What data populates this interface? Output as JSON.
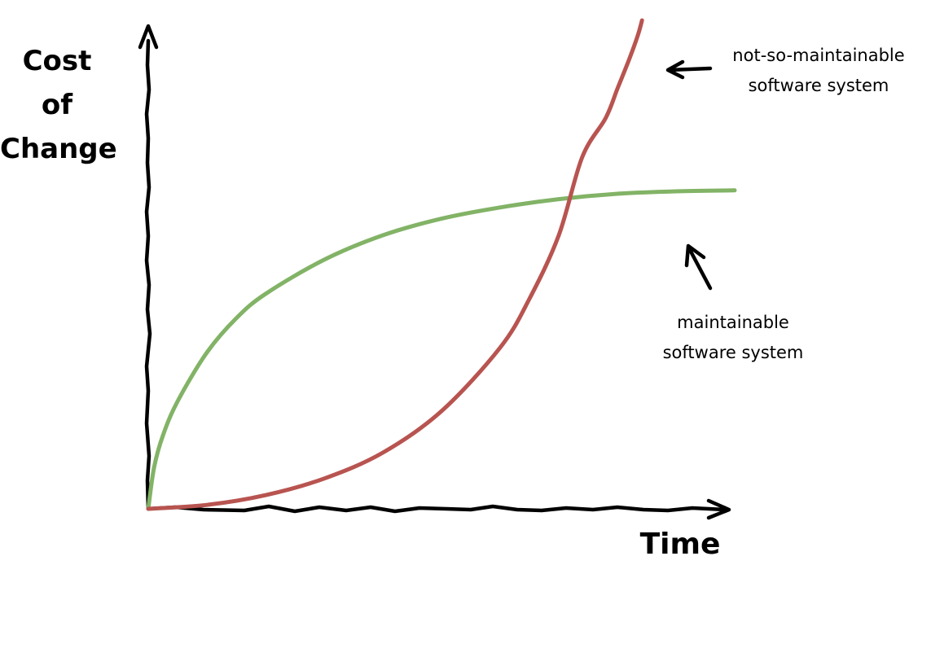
{
  "chart_data": {
    "type": "line",
    "title": "",
    "xlabel": "Time",
    "ylabel": "Cost\nof\nChange",
    "grid": false,
    "legend": "none",
    "xlim": [
      0,
      1
    ],
    "ylim": [
      0,
      1
    ],
    "series": [
      {
        "name": "maintainable\nsoftware system",
        "color": "#82b366",
        "x": [
          0,
          0.01,
          0.025,
          0.05,
          0.1,
          0.15,
          0.2,
          0.3,
          0.4,
          0.5,
          0.6,
          0.7,
          0.8,
          0.9,
          1.0
        ],
        "y": [
          0,
          0.085,
          0.15,
          0.22,
          0.32,
          0.39,
          0.44,
          0.51,
          0.56,
          0.594,
          0.617,
          0.634,
          0.645,
          0.65,
          0.652
        ]
      },
      {
        "name": "not-so-maintainable\nsoftware system",
        "color": "#b85450",
        "x": [
          0,
          0.1,
          0.2,
          0.3,
          0.4,
          0.5,
          0.6,
          0.65,
          0.7,
          0.74,
          0.78,
          0.8,
          0.82,
          0.835,
          0.842
        ],
        "y": [
          0,
          0.008,
          0.028,
          0.062,
          0.115,
          0.2,
          0.33,
          0.43,
          0.56,
          0.72,
          0.8,
          0.86,
          0.92,
          0.97,
          1.0
        ]
      }
    ],
    "annotations": [
      {
        "text": "not-so-maintainable\nsoftware system",
        "series": 1
      },
      {
        "text": "maintainable\nsoftware system",
        "series": 0
      }
    ]
  }
}
